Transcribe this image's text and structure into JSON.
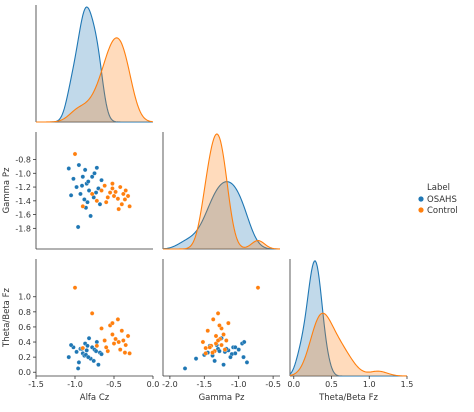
{
  "colors": {
    "osahs": "#1f77b4",
    "control": "#ff7f0e",
    "axis": "#333333"
  },
  "legend": {
    "title": "Label",
    "entries": [
      {
        "label": "OSAHS",
        "color": "#1f77b4"
      },
      {
        "label": "Control",
        "color": "#ff7f0e"
      }
    ]
  },
  "chart_data": {
    "type": "pairplot",
    "variables": [
      "Alfa Cz",
      "Gamma Pz",
      "Theta/Beta Fz"
    ],
    "axis_labels": {
      "x": [
        "Alfa Cz",
        "Gamma Pz",
        "Theta/Beta Fz"
      ],
      "y": [
        "Gamma Pz",
        "Theta/Beta Fz"
      ]
    },
    "ranges": {
      "alfa": [
        -1.5,
        0.0
      ],
      "gamma": [
        -2.1,
        -0.4
      ],
      "tb": [
        -0.05,
        1.5
      ]
    },
    "ticks": {
      "alfa": [
        -1.5,
        -1.0,
        -0.5,
        0.0
      ],
      "gamma_x": [
        -2.0,
        -1.5,
        -1.0,
        -0.5
      ],
      "gamma_y": [
        -0.8,
        -1.0,
        -1.2,
        -1.4,
        -1.6,
        -1.8
      ],
      "tb_x": [
        0.0,
        0.5,
        1.0,
        1.5
      ],
      "tb_y": [
        0.0,
        0.2,
        0.4,
        0.6,
        0.8,
        1.0
      ]
    },
    "tick_labels": {
      "alfa": [
        "-1.5",
        "-1.0",
        "-0.5",
        "0.0"
      ],
      "gamma_x": [
        "-2.0",
        "-1.5",
        "-1.0",
        "-0.5"
      ],
      "gamma_y": [
        "-0.8",
        "-1.0",
        "-1.2",
        "-1.4",
        "-1.6",
        "-1.8"
      ],
      "tb_x": [
        "0.0",
        "0.5",
        "1.0",
        "1.5"
      ],
      "tb_y": [
        "0.0",
        "0.2",
        "0.4",
        "0.6",
        "0.8",
        "1.0"
      ]
    },
    "series": [
      {
        "name": "OSAHS",
        "color": "#1f77b4",
        "alfa": [
          -1.08,
          -1.02,
          -0.98,
          -0.95,
          -0.93,
          -0.9,
          -0.88,
          -0.87,
          -0.85,
          -0.84,
          -0.82,
          -0.8,
          -0.78,
          -0.76,
          -0.75,
          -0.73,
          -0.72,
          -0.7,
          -0.68,
          -0.66,
          -1.05,
          -0.96,
          -0.91,
          -0.86,
          -0.83
        ],
        "gamma": [
          -0.93,
          -1.08,
          -1.2,
          -0.88,
          -1.3,
          -1.05,
          -1.38,
          -0.95,
          -1.15,
          -1.42,
          -1.25,
          -1.62,
          -1.05,
          -1.35,
          -1.0,
          -1.28,
          -0.92,
          -1.22,
          -1.45,
          -1.1,
          -1.32,
          -1.78,
          -1.18,
          -1.5,
          -1.12
        ],
        "tb": [
          0.2,
          0.33,
          0.27,
          0.13,
          0.31,
          0.25,
          0.22,
          0.38,
          0.29,
          0.35,
          0.45,
          0.18,
          0.33,
          0.15,
          0.3,
          0.28,
          0.4,
          0.1,
          0.26,
          0.24,
          0.36,
          0.05,
          0.31,
          0.23,
          0.2
        ]
      },
      {
        "name": "Control",
        "color": "#ff7f0e",
        "alfa": [
          -1.0,
          -0.9,
          -0.78,
          -0.72,
          -0.66,
          -0.62,
          -0.58,
          -0.55,
          -0.52,
          -0.5,
          -0.48,
          -0.45,
          -0.42,
          -0.4,
          -0.38,
          -0.35,
          -0.32,
          -0.3,
          -0.52,
          -0.6,
          -0.44,
          -0.36
        ],
        "gamma": [
          -0.72,
          -1.48,
          -1.3,
          -1.4,
          -1.25,
          -1.18,
          -1.35,
          -1.28,
          -1.22,
          -1.33,
          -1.27,
          -1.37,
          -1.2,
          -1.45,
          -1.3,
          -1.25,
          -1.33,
          -1.48,
          -1.15,
          -1.42,
          -1.52,
          -1.38
        ],
        "tb": [
          1.12,
          0.32,
          0.78,
          0.35,
          0.58,
          0.42,
          0.28,
          0.62,
          0.5,
          0.38,
          0.44,
          0.7,
          0.3,
          0.55,
          0.42,
          0.36,
          0.48,
          0.25,
          0.65,
          0.33,
          0.4,
          0.26
        ]
      }
    ]
  }
}
